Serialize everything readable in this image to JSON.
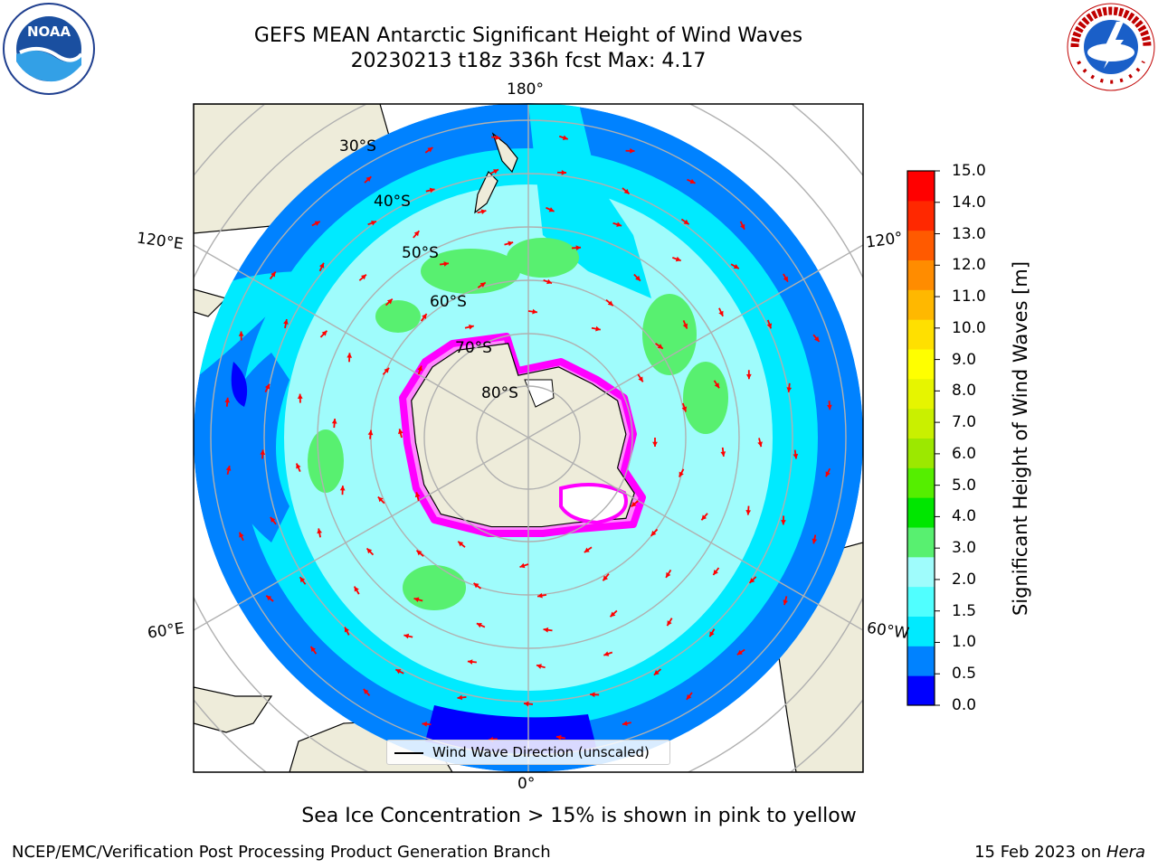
{
  "title": {
    "line1": "GEFS MEAN Antarctic Significant Height of Wind Waves",
    "line2": "20230213 t18z 336h fcst   Max: 4.17"
  },
  "logos": {
    "left": {
      "icon": "noaa-logo-icon",
      "text": "NOAA"
    },
    "right": {
      "icon": "nws-logo-icon",
      "text": "NATIONAL WEATHER SERVICE"
    }
  },
  "map": {
    "projection": "south-polar-stereographic",
    "longitude_labels": {
      "top": "180°",
      "bottom": "0°",
      "upper_left": "120°E",
      "lower_left": "60°E",
      "upper_right": "120°",
      "lower_right": "60°W"
    },
    "latitude_labels": [
      "30°S",
      "40°S",
      "50°S",
      "60°S",
      "70°S",
      "80°S"
    ],
    "legend_label": "Wind Wave Direction (unscaled)",
    "colors": {
      "land": "#eeecda",
      "ocean_deep_blue": "#0000ff",
      "ocean_blue": "#0082ff",
      "ocean_cyan": "#00eaff",
      "ocean_light_cyan": "#9ffcfc",
      "ocean_green": "#58f070",
      "arrow": "#ff0000",
      "ice_edge": "#ff00ff",
      "graticule": "#b0b0b0"
    }
  },
  "colorbar": {
    "label": "Significant Height of Wind Waves [m]",
    "ticks": [
      "15.0",
      "14.0",
      "13.0",
      "12.0",
      "11.0",
      "10.0",
      "9.0",
      "8.0",
      "7.0",
      "6.0",
      "5.0",
      "4.0",
      "3.0",
      "2.0",
      "1.5",
      "1.0",
      "0.5",
      "0.0"
    ],
    "colors": [
      "#0000ff",
      "#0082ff",
      "#00eaff",
      "#50ffff",
      "#9ffcfc",
      "#58f070",
      "#00e600",
      "#55ee00",
      "#9ce800",
      "#c9f000",
      "#e6f500",
      "#ffff00",
      "#ffe000",
      "#ffb800",
      "#ff8c00",
      "#ff5a00",
      "#ff2800",
      "#ff0000"
    ]
  },
  "notes": {
    "sea_ice": "Sea Ice Concentration > 15% is shown in pink to yellow"
  },
  "footer": {
    "left": "NCEP/EMC/Verification Post Processing Product Generation Branch",
    "right_prefix": "15 Feb 2023 on ",
    "right_machine": "Hera"
  }
}
